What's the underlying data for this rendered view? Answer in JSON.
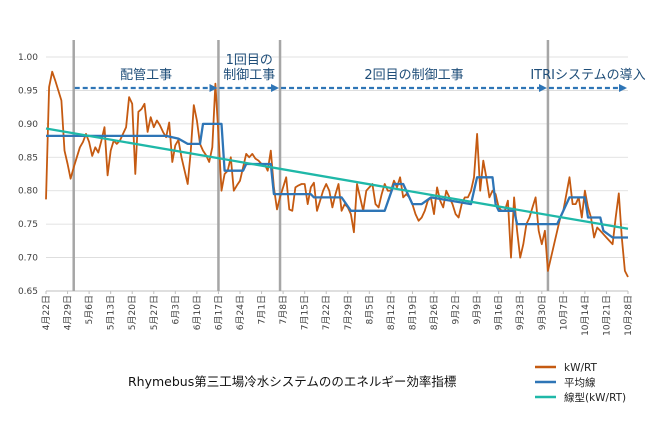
{
  "chart_data": {
    "type": "line",
    "title": "Rhymebus第三工場冷水システムののエネルギー効率指標",
    "xlabel": "",
    "ylabel": "",
    "ylim": [
      0.65,
      1.0
    ],
    "yticks": [
      "1.00",
      "0.95",
      "0.90",
      "0.85",
      "0.80",
      "0.75",
      "0.70",
      "0.65"
    ],
    "grid": "horizontal",
    "legend_position": "bottom-right",
    "x_tick_labels": [
      "4月22日",
      "4月29日",
      "5月6日",
      "5月13日",
      "5月20日",
      "5月27日",
      "6月3日",
      "6月10日",
      "6月17日",
      "6月24日",
      "7月1日",
      "7月8日",
      "7月15日",
      "7月22日",
      "7月29日",
      "8月5日",
      "8月12日",
      "8月19日",
      "8月26日",
      "9月2日",
      "9月9日",
      "9月16日",
      "9月23日",
      "9月30日",
      "10月7日",
      "10月14日",
      "10月21日",
      "10月28日"
    ],
    "x_domain": [
      0,
      189
    ],
    "phase_lines": [
      9,
      56,
      76,
      163
    ],
    "phases": [
      {
        "label": "配管工事",
        "start": 9,
        "end": 56
      },
      {
        "label": "1回目の\n制御工事",
        "start": 56,
        "end": 76
      },
      {
        "label": "2回目の制御工事",
        "start": 76,
        "end": 163
      },
      {
        "label": "ITRIシステムの導入",
        "start": 163,
        "end": 189
      }
    ],
    "series": [
      {
        "name": "kW/RT",
        "color": "#c55a11",
        "points": [
          [
            0,
            0.787
          ],
          [
            1,
            0.955
          ],
          [
            2,
            0.978
          ],
          [
            3,
            0.965
          ],
          [
            4,
            0.95
          ],
          [
            5,
            0.935
          ],
          [
            6,
            0.86
          ],
          [
            7,
            0.84
          ],
          [
            8,
            0.818
          ],
          [
            9,
            0.835
          ],
          [
            10,
            0.85
          ],
          [
            11,
            0.865
          ],
          [
            12,
            0.873
          ],
          [
            13,
            0.885
          ],
          [
            14,
            0.873
          ],
          [
            15,
            0.852
          ],
          [
            16,
            0.865
          ],
          [
            17,
            0.857
          ],
          [
            18,
            0.875
          ],
          [
            19,
            0.895
          ],
          [
            20,
            0.823
          ],
          [
            21,
            0.86
          ],
          [
            22,
            0.875
          ],
          [
            23,
            0.87
          ],
          [
            24,
            0.875
          ],
          [
            25,
            0.885
          ],
          [
            26,
            0.895
          ],
          [
            27,
            0.94
          ],
          [
            28,
            0.93
          ],
          [
            29,
            0.825
          ],
          [
            30,
            0.918
          ],
          [
            31,
            0.922
          ],
          [
            32,
            0.93
          ],
          [
            33,
            0.888
          ],
          [
            34,
            0.91
          ],
          [
            35,
            0.895
          ],
          [
            36,
            0.905
          ],
          [
            37,
            0.898
          ],
          [
            38,
            0.888
          ],
          [
            39,
            0.88
          ],
          [
            40,
            0.902
          ],
          [
            41,
            0.843
          ],
          [
            42,
            0.868
          ],
          [
            43,
            0.876
          ],
          [
            44,
            0.85
          ],
          [
            45,
            0.83
          ],
          [
            46,
            0.81
          ],
          [
            47,
            0.858
          ],
          [
            48,
            0.928
          ],
          [
            49,
            0.905
          ],
          [
            50,
            0.87
          ],
          [
            51,
            0.86
          ],
          [
            52,
            0.853
          ],
          [
            53,
            0.843
          ],
          [
            54,
            0.865
          ],
          [
            55,
            0.96
          ],
          [
            56,
            0.885
          ],
          [
            57,
            0.8
          ],
          [
            58,
            0.825
          ],
          [
            59,
            0.83
          ],
          [
            60,
            0.85
          ],
          [
            61,
            0.8
          ],
          [
            62,
            0.808
          ],
          [
            63,
            0.815
          ],
          [
            64,
            0.835
          ],
          [
            65,
            0.855
          ],
          [
            66,
            0.85
          ],
          [
            67,
            0.855
          ],
          [
            68,
            0.848
          ],
          [
            69,
            0.845
          ],
          [
            70,
            0.84
          ],
          [
            71,
            0.84
          ],
          [
            72,
            0.83
          ],
          [
            73,
            0.86
          ],
          [
            74,
            0.805
          ],
          [
            75,
            0.772
          ],
          [
            76,
            0.79
          ],
          [
            77,
            0.805
          ],
          [
            78,
            0.82
          ],
          [
            79,
            0.772
          ],
          [
            80,
            0.77
          ],
          [
            81,
            0.805
          ],
          [
            82,
            0.808
          ],
          [
            83,
            0.81
          ],
          [
            84,
            0.81
          ],
          [
            85,
            0.78
          ],
          [
            86,
            0.805
          ],
          [
            87,
            0.812
          ],
          [
            88,
            0.77
          ],
          [
            89,
            0.785
          ],
          [
            90,
            0.8
          ],
          [
            91,
            0.81
          ],
          [
            92,
            0.8
          ],
          [
            93,
            0.775
          ],
          [
            94,
            0.795
          ],
          [
            95,
            0.81
          ],
          [
            96,
            0.77
          ],
          [
            97,
            0.78
          ],
          [
            98,
            0.775
          ],
          [
            99,
            0.765
          ],
          [
            100,
            0.738
          ],
          [
            101,
            0.81
          ],
          [
            102,
            0.79
          ],
          [
            103,
            0.77
          ],
          [
            104,
            0.8
          ],
          [
            105,
            0.805
          ],
          [
            106,
            0.81
          ],
          [
            107,
            0.78
          ],
          [
            108,
            0.775
          ],
          [
            109,
            0.795
          ],
          [
            110,
            0.81
          ],
          [
            111,
            0.8
          ],
          [
            112,
            0.8
          ],
          [
            113,
            0.815
          ],
          [
            114,
            0.805
          ],
          [
            115,
            0.82
          ],
          [
            116,
            0.79
          ],
          [
            117,
            0.795
          ],
          [
            118,
            0.79
          ],
          [
            119,
            0.78
          ],
          [
            120,
            0.765
          ],
          [
            121,
            0.755
          ],
          [
            122,
            0.76
          ],
          [
            123,
            0.77
          ],
          [
            124,
            0.785
          ],
          [
            125,
            0.79
          ],
          [
            126,
            0.765
          ],
          [
            127,
            0.805
          ],
          [
            128,
            0.785
          ],
          [
            129,
            0.775
          ],
          [
            130,
            0.8
          ],
          [
            131,
            0.79
          ],
          [
            132,
            0.78
          ],
          [
            133,
            0.765
          ],
          [
            134,
            0.76
          ],
          [
            135,
            0.78
          ],
          [
            136,
            0.79
          ],
          [
            137,
            0.79
          ],
          [
            138,
            0.8
          ],
          [
            139,
            0.82
          ],
          [
            140,
            0.885
          ],
          [
            141,
            0.8
          ],
          [
            142,
            0.845
          ],
          [
            143,
            0.82
          ],
          [
            144,
            0.79
          ],
          [
            145,
            0.8
          ],
          [
            146,
            0.795
          ],
          [
            147,
            0.775
          ],
          [
            148,
            0.77
          ],
          [
            149,
            0.77
          ],
          [
            150,
            0.785
          ],
          [
            151,
            0.7
          ],
          [
            152,
            0.79
          ],
          [
            153,
            0.74
          ],
          [
            154,
            0.7
          ],
          [
            155,
            0.72
          ],
          [
            156,
            0.75
          ],
          [
            157,
            0.76
          ],
          [
            158,
            0.775
          ],
          [
            159,
            0.79
          ],
          [
            160,
            0.74
          ],
          [
            161,
            0.72
          ],
          [
            162,
            0.74
          ],
          [
            163,
            0.68
          ],
          [
            164,
            0.7
          ],
          [
            165,
            0.72
          ],
          [
            166,
            0.74
          ],
          [
            167,
            0.76
          ],
          [
            168,
            0.77
          ],
          [
            169,
            0.795
          ],
          [
            170,
            0.82
          ],
          [
            171,
            0.78
          ],
          [
            172,
            0.78
          ],
          [
            173,
            0.79
          ],
          [
            174,
            0.76
          ],
          [
            175,
            0.8
          ],
          [
            176,
            0.775
          ],
          [
            177,
            0.76
          ],
          [
            178,
            0.73
          ],
          [
            179,
            0.745
          ],
          [
            180,
            0.74
          ],
          [
            181,
            0.735
          ],
          [
            182,
            0.73
          ],
          [
            183,
            0.725
          ],
          [
            184,
            0.72
          ],
          [
            185,
            0.76
          ],
          [
            186,
            0.796
          ],
          [
            187,
            0.73
          ],
          [
            188,
            0.68
          ],
          [
            189,
            0.671
          ]
        ]
      },
      {
        "name": "平均線",
        "color": "#2e75b6",
        "points": [
          [
            0,
            0.882
          ],
          [
            39,
            0.882
          ],
          [
            43,
            0.878
          ],
          [
            46,
            0.87
          ],
          [
            50,
            0.87
          ],
          [
            51,
            0.9
          ],
          [
            55,
            0.9
          ],
          [
            57,
            0.9
          ],
          [
            58,
            0.83
          ],
          [
            64,
            0.83
          ],
          [
            65,
            0.84
          ],
          [
            72,
            0.84
          ],
          [
            73,
            0.84
          ],
          [
            74,
            0.795
          ],
          [
            86,
            0.795
          ],
          [
            87,
            0.79
          ],
          [
            95,
            0.79
          ],
          [
            96,
            0.79
          ],
          [
            99,
            0.77
          ],
          [
            104,
            0.77
          ],
          [
            110,
            0.77
          ],
          [
            113,
            0.81
          ],
          [
            116,
            0.81
          ],
          [
            119,
            0.78
          ],
          [
            122,
            0.78
          ],
          [
            125,
            0.79
          ],
          [
            138,
            0.78
          ],
          [
            139,
            0.8
          ],
          [
            140,
            0.82
          ],
          [
            145,
            0.82
          ],
          [
            146,
            0.78
          ],
          [
            147,
            0.77
          ],
          [
            152,
            0.77
          ],
          [
            153,
            0.75
          ],
          [
            166,
            0.75
          ],
          [
            170,
            0.79
          ],
          [
            175,
            0.79
          ],
          [
            176,
            0.76
          ],
          [
            180,
            0.76
          ],
          [
            181,
            0.74
          ],
          [
            184,
            0.73
          ],
          [
            189,
            0.73
          ]
        ]
      },
      {
        "name": "線型(kW/RT)",
        "color": "#1fb8a8",
        "points": [
          [
            0,
            0.893
          ],
          [
            189,
            0.743
          ]
        ]
      }
    ]
  }
}
